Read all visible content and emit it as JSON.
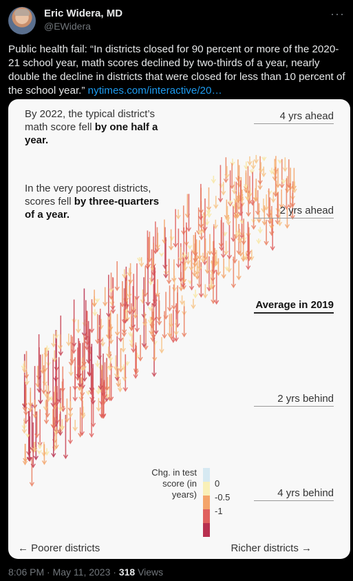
{
  "tweet": {
    "author_name": "Eric Widera, MD",
    "author_handle": "@EWidera",
    "more_icon": "more-icon",
    "text": "Public health fail: “In districts closed for 90 percent or more of the 2020-21 school year, math scores declined by two-thirds of a year, nearly double the decline in districts that were closed for less than 10 percent of the school year.” ",
    "link_text": "nytimes.com/interactive/20…",
    "time": "8:06 PM · May 11, 2023 · ",
    "views_count": "318",
    "views_label": " Views"
  },
  "card": {
    "annotation1_plain": "By 2022, the typical district’s math score fell ",
    "annotation1_bold": "by one half a year.",
    "annotation2_plain": "In the very poorest districts, scores fell ",
    "annotation2_bold_a": "by",
    "annotation2_bold_b": "three-quarters of a year.",
    "ref_labels": [
      "4 yrs ahead",
      "2 yrs ahead",
      "Average in 2019",
      "2 yrs behind",
      "4 yrs behind"
    ],
    "legend_title": "Chg. in test score (in years)",
    "legend_labels": [
      "0",
      "-0.5",
      "-1"
    ],
    "legend_colors": [
      "#d6e9f2",
      "#f9f0b8",
      "#f4a46a",
      "#e0605e",
      "#b8304f"
    ],
    "axis_left": "← Poorer districts",
    "axis_right": "Richer districts →"
  },
  "chart_data": {
    "type": "scatter",
    "description_of_marks": "arrows from 2019 score to 2022 score per district",
    "y_unit": "years relative to 2019 average",
    "y_ref_values": [
      4,
      2,
      0,
      -2,
      -4
    ],
    "x_direction": "poorer to richer",
    "color_scale": {
      "0": "#f9f0b8",
      "-0.5": "#f4a46a",
      "-1": "#b8304f"
    },
    "typical_change": -0.5,
    "poorest_change": -0.75
  }
}
